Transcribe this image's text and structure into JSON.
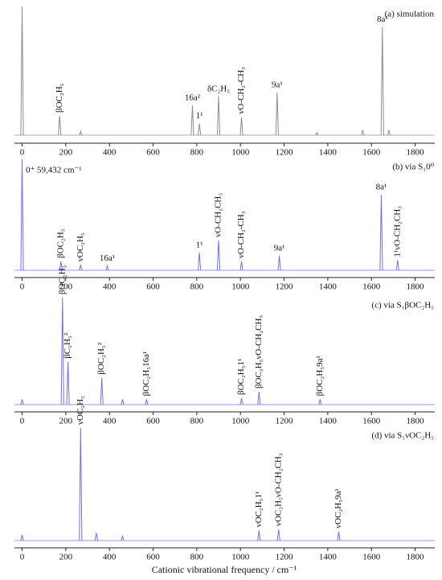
{
  "chart_data": [
    {
      "type": "spectrum",
      "title": "(a) simulation",
      "color": "#8c8c8c",
      "x": [
        0,
        172,
        268,
        780,
        812,
        900,
        1005,
        1168,
        1350,
        1560,
        1650,
        1680
      ],
      "values": [
        100,
        15,
        3,
        23,
        9,
        30,
        14,
        33,
        2,
        4,
        84,
        4
      ],
      "peak_labels": [
        null,
        "βOC₂H₅",
        null,
        "16a²",
        "1¹",
        "δC₂H₅",
        "νO-CH₂-CH₃",
        "9a¹",
        null,
        null,
        "8a¹",
        null
      ],
      "xlim": [
        -35,
        1890
      ],
      "ylim": [
        0,
        100
      ],
      "xticks": [
        0,
        200,
        400,
        600,
        800,
        1000,
        1200,
        1400,
        1600,
        1800
      ]
    },
    {
      "type": "spectrum",
      "title": "(b) via S₁0⁰",
      "annotation": "0⁺ 59,432 cm⁻¹",
      "color": "#6f6ff2",
      "x": [
        0,
        178,
        268,
        390,
        812,
        900,
        1005,
        1178,
        1645,
        1720
      ],
      "values": [
        100,
        8,
        5,
        4,
        16,
        27,
        8,
        13,
        68,
        9
      ],
      "peak_labels": [
        null,
        "βOC₂H₅",
        "νOC₂H₅",
        "16a¹",
        "1¹",
        "νO-CH₂CH₃",
        "νO-CH₂-CH₃",
        "9a¹",
        "8a¹",
        "1¹νO-CH₂CH₃"
      ],
      "xlim": [
        -35,
        1890
      ],
      "ylim": [
        0,
        100
      ],
      "xticks": [
        0,
        200,
        400,
        600,
        800,
        1000,
        1200,
        1400,
        1600,
        1800
      ]
    },
    {
      "type": "spectrum",
      "title": "(c) via S₁βOC₂H₅",
      "color": "#6f6ff2",
      "x": [
        0,
        185,
        210,
        365,
        460,
        570,
        1005,
        1085,
        1365
      ],
      "values": [
        5,
        100,
        40,
        25,
        5,
        5,
        6,
        12,
        5
      ],
      "peak_labels": [
        null,
        "βOC₂H₅",
        "βC₂H₅²",
        "βOC₂H₅²",
        null,
        "βOC₂H₅16a¹",
        "βOC₂H₅1¹",
        "βOC₂H₅νO-CH₂CH₃",
        "βOC₂H₅9a¹"
      ],
      "xlim": [
        -35,
        1890
      ],
      "ylim": [
        0,
        100
      ],
      "xticks": [
        0,
        200,
        400,
        600,
        800,
        1000,
        1200,
        1400,
        1600,
        1800
      ]
    },
    {
      "type": "spectrum",
      "title": "(d) via S₁νOC₂H₅",
      "color": "#6f6ff2",
      "x": [
        0,
        268,
        340,
        460,
        1085,
        1175,
        1450
      ],
      "values": [
        5,
        100,
        7,
        4,
        9,
        10,
        8
      ],
      "peak_labels": [
        null,
        "νOC₂H₅",
        null,
        null,
        "νOC₂H₅1¹",
        "νOC₂H₅νO-CH₂CH₃",
        "νOC₂H₅9a¹"
      ],
      "xlim": [
        -35,
        1890
      ],
      "ylim": [
        0,
        100
      ],
      "xticks": [
        0,
        200,
        400,
        600,
        800,
        1000,
        1200,
        1400,
        1600,
        1800
      ],
      "xlabel": "Cationic vibrational frequency / cm⁻¹"
    }
  ]
}
